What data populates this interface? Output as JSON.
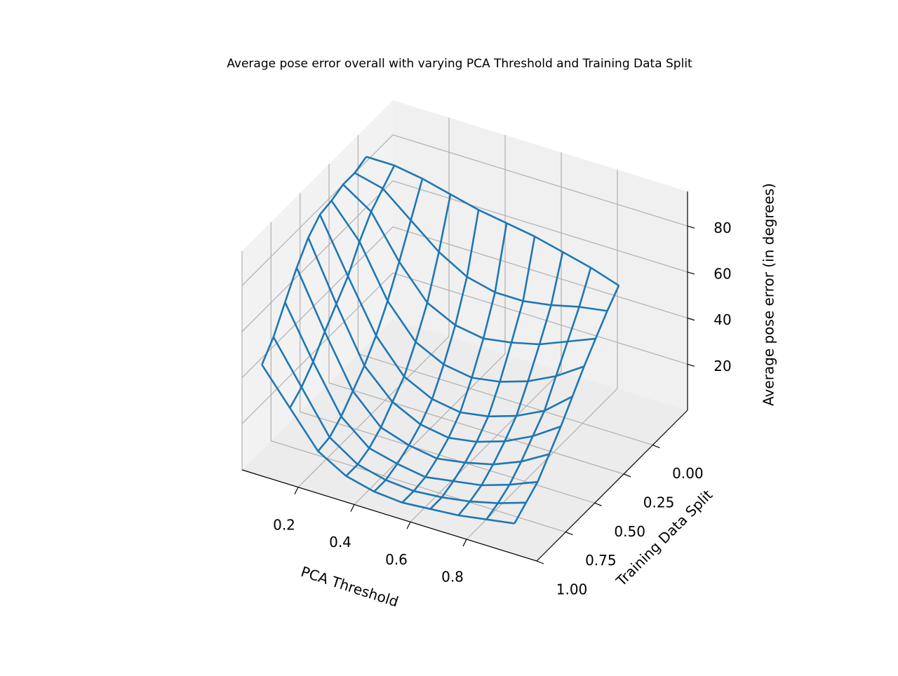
{
  "chart_data": {
    "type": "wireframe",
    "title": "Average pose error overall with varying PCA Threshold and Training Data Split",
    "xlabel": "PCA Threshold",
    "ylabel": "Training Data Split",
    "zlabel": "Average pose error (in degrees)",
    "color": "#1f77b4",
    "x": [
      0.05,
      0.15,
      0.25,
      0.35,
      0.45,
      0.55,
      0.65,
      0.75,
      0.85,
      0.95
    ],
    "y": [
      0.05,
      0.15,
      0.25,
      0.35,
      0.45,
      0.55,
      0.65,
      0.75,
      0.85,
      0.95
    ],
    "z": [
      [
        90,
        90,
        88,
        85,
        82,
        80,
        78,
        75,
        72,
        68
      ],
      [
        88,
        85,
        75,
        65,
        58,
        55,
        55,
        57,
        60,
        62
      ],
      [
        88,
        80,
        62,
        48,
        42,
        40,
        42,
        45,
        50,
        55
      ],
      [
        86,
        72,
        50,
        36,
        30,
        28,
        30,
        34,
        40,
        48
      ],
      [
        85,
        62,
        40,
        26,
        20,
        18,
        20,
        24,
        30,
        40
      ],
      [
        80,
        55,
        32,
        20,
        14,
        12,
        14,
        18,
        24,
        32
      ],
      [
        72,
        48,
        26,
        14,
        10,
        8,
        10,
        13,
        18,
        25
      ],
      [
        62,
        40,
        20,
        10,
        7,
        5,
        7,
        9,
        13,
        18
      ],
      [
        52,
        34,
        16,
        8,
        5,
        4,
        5,
        7,
        10,
        14
      ],
      [
        45,
        30,
        15,
        8,
        5,
        4,
        5,
        6,
        8,
        10
      ]
    ],
    "xlim": [
      0.0,
      1.05
    ],
    "xticks": [
      {
        "value": 0.2,
        "label": "0.2"
      },
      {
        "value": 0.4,
        "label": "0.4"
      },
      {
        "value": 0.6,
        "label": "0.6"
      },
      {
        "value": 0.8,
        "label": "0.8"
      }
    ],
    "ylim": [
      -0.3,
      1.0
    ],
    "yticks": [
      {
        "value": 0,
        "label": "0.00"
      },
      {
        "value": 0.25,
        "label": "0.25"
      },
      {
        "value": 0.5,
        "label": "0.50"
      },
      {
        "value": 0.75,
        "label": "0.75"
      },
      {
        "value": 1,
        "label": "1.00"
      }
    ],
    "zlim": [
      0,
      95
    ],
    "zticks": [
      20,
      40,
      60,
      80
    ],
    "grid": true
  }
}
